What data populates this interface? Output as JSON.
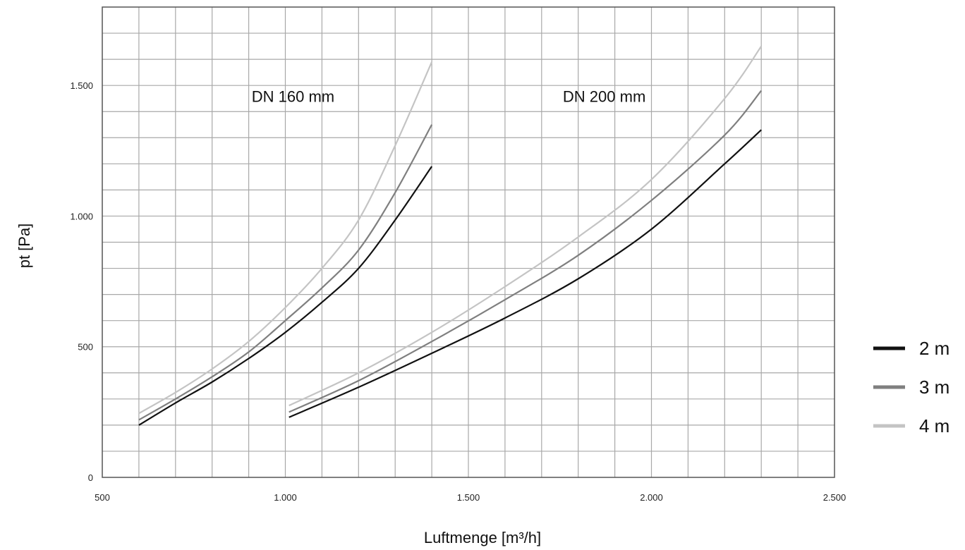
{
  "chart_data": {
    "type": "line",
    "title": "",
    "xlabel": "Luftmenge [m³/h]",
    "ylabel": "pt [Pa]",
    "xlim": [
      500,
      2500
    ],
    "ylim": [
      0,
      1800
    ],
    "x_ticks": [
      500,
      1000,
      1500,
      2000,
      2500
    ],
    "x_tick_labels": [
      "500",
      "1.000",
      "1.500",
      "2.000",
      "2.500"
    ],
    "y_ticks": [
      0,
      500,
      1000,
      1500
    ],
    "y_tick_labels": [
      "0",
      "500",
      "1.000",
      "1.500"
    ],
    "grid": true,
    "x_grid_step": 100,
    "y_grid_step": 100,
    "legend_position": "right",
    "annotations": [
      {
        "text": "DN 160 mm",
        "x": 1050,
        "y": 1450
      },
      {
        "text": "DN 200 mm",
        "x": 1900,
        "y": 1450
      }
    ],
    "legend": [
      {
        "name": "2 m",
        "color": "#111111"
      },
      {
        "name": "3 m",
        "color": "#7f7f7f"
      },
      {
        "name": "4 m",
        "color": "#c4c4c4"
      }
    ],
    "series": [
      {
        "name": "2 m",
        "group": "DN 160 mm",
        "color": "#111111",
        "x": [
          600,
          700,
          800,
          900,
          1000,
          1100,
          1200,
          1300,
          1400
        ],
        "y": [
          200,
          285,
          365,
          455,
          555,
          670,
          800,
          985,
          1190
        ]
      },
      {
        "name": "3 m",
        "group": "DN 160 mm",
        "color": "#7f7f7f",
        "x": [
          600,
          700,
          800,
          900,
          1000,
          1100,
          1200,
          1300,
          1400
        ],
        "y": [
          220,
          300,
          385,
          480,
          600,
          725,
          870,
          1090,
          1350
        ]
      },
      {
        "name": "4 m",
        "group": "DN 160 mm",
        "color": "#c4c4c4",
        "x": [
          600,
          700,
          800,
          900,
          1000,
          1100,
          1200,
          1300,
          1400
        ],
        "y": [
          245,
          325,
          415,
          520,
          650,
          800,
          985,
          1270,
          1590
        ]
      },
      {
        "name": "2 m",
        "group": "DN 200 mm",
        "color": "#111111",
        "x": [
          1010,
          1200,
          1400,
          1600,
          1800,
          2000,
          2200,
          2300
        ],
        "y": [
          230,
          345,
          475,
          610,
          760,
          950,
          1200,
          1330
        ]
      },
      {
        "name": "3 m",
        "group": "DN 200 mm",
        "color": "#7f7f7f",
        "x": [
          1010,
          1200,
          1400,
          1600,
          1800,
          2000,
          2200,
          2300
        ],
        "y": [
          250,
          370,
          520,
          680,
          850,
          1060,
          1310,
          1480
        ]
      },
      {
        "name": "4 m",
        "group": "DN 200 mm",
        "color": "#c4c4c4",
        "x": [
          1010,
          1200,
          1400,
          1600,
          1800,
          2000,
          2200,
          2300
        ],
        "y": [
          275,
          400,
          555,
          730,
          920,
          1140,
          1450,
          1650
        ]
      }
    ]
  }
}
